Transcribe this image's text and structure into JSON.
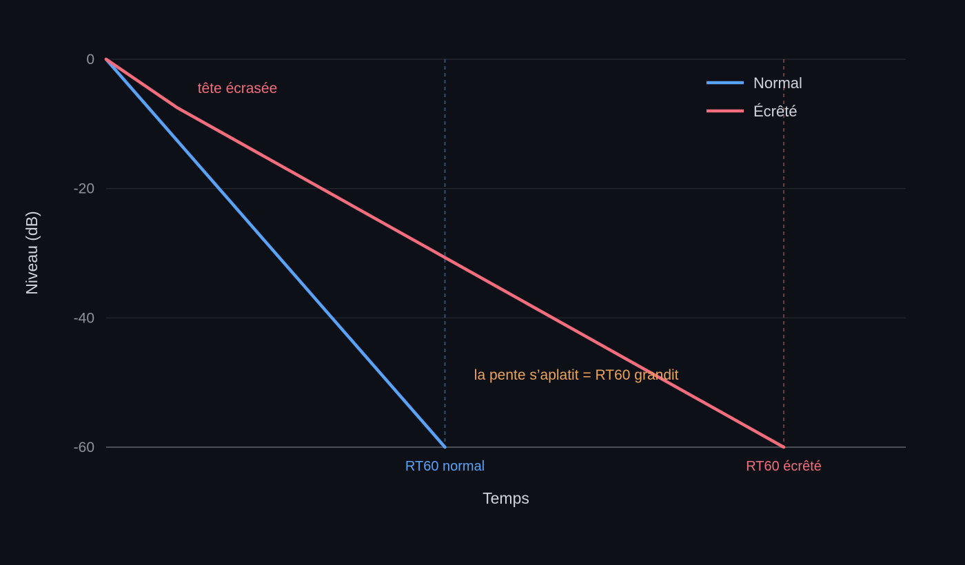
{
  "colors": {
    "background": "#0d1017",
    "grid": "#262b33",
    "axis": "#4b5058",
    "tick_text": "#8d939d",
    "label_text": "#d0d4da",
    "normal": "#5aa2f5",
    "clipped": "#f26d7d",
    "annotation": "#eca35a"
  },
  "chart_data": {
    "type": "line",
    "title": "",
    "xlabel": "Temps",
    "ylabel": "Niveau (dB)",
    "ylim": [
      -60,
      0
    ],
    "yticks": [
      0,
      -20,
      -40,
      -60
    ],
    "xlim": [
      0,
      1.18
    ],
    "grid": "horizontal",
    "legend_position": "top-right",
    "series": [
      {
        "name": "Normal",
        "color_key": "normal",
        "x": [
          0,
          0.5
        ],
        "y": [
          0,
          -60
        ]
      },
      {
        "name": "Écrêté",
        "color_key": "clipped",
        "x": [
          0,
          0.105,
          1.0
        ],
        "y": [
          0,
          -7.5,
          -60
        ]
      }
    ],
    "markers": [
      {
        "label": "RT60 normal",
        "x": 0.5,
        "color_key": "normal"
      },
      {
        "label": "RT60 écrêté",
        "x": 1.0,
        "color_key": "clipped"
      }
    ],
    "annotations": [
      {
        "text": "tête écrasée",
        "x": 0.135,
        "y": -4.5,
        "color_key": "clipped",
        "anchor": "start"
      },
      {
        "text": "la pente s’aplatit = RT60 grandit",
        "x": 0.543,
        "y": -48.8,
        "color_key": "annotation",
        "anchor": "start"
      }
    ]
  }
}
